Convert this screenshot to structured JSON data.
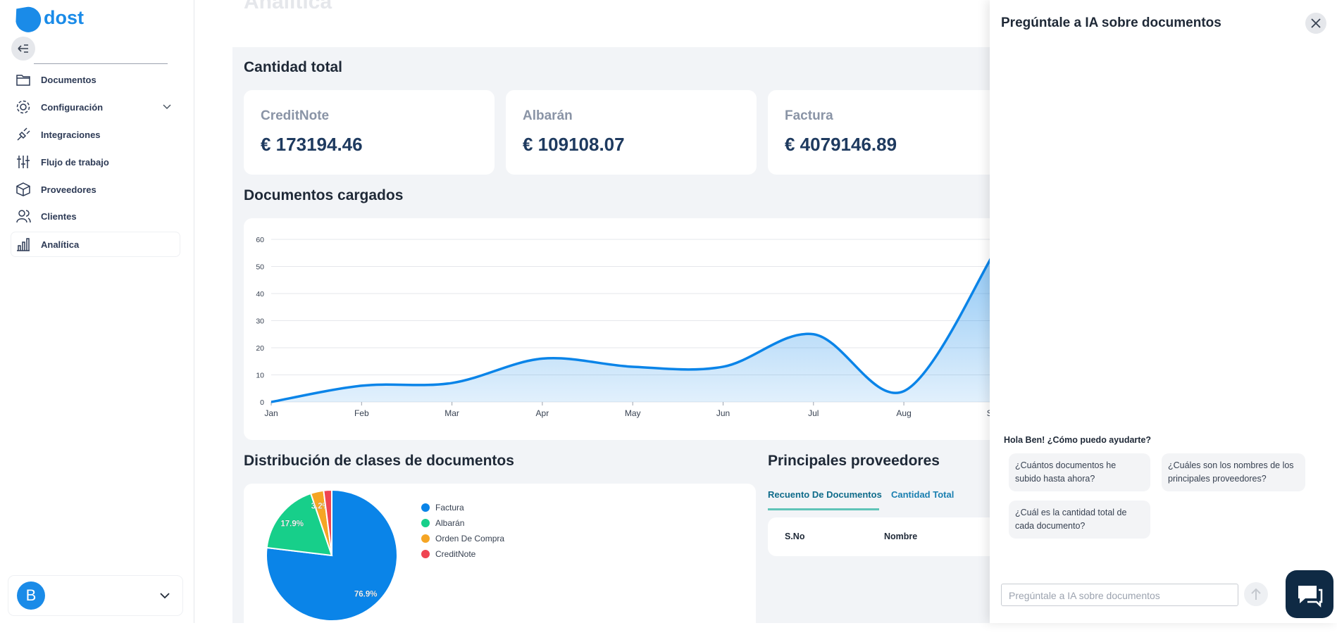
{
  "sidebar": {
    "logo": "dost",
    "nav": [
      "Documentos",
      "Configuración",
      "Integraciones",
      "Flujo de trabajo",
      "Proveedores",
      "Clientes",
      "Analítica"
    ],
    "user_initial": "B"
  },
  "page": {
    "title": "Analítica",
    "totals_heading": "Cantidad total",
    "cards": [
      {
        "label": "CreditNote",
        "amount": "€ 173194.46"
      },
      {
        "label": "Albarán",
        "amount": "€ 109108.07"
      },
      {
        "label": "Factura",
        "amount": "€ 4079146.89"
      }
    ],
    "uploads_heading": "Documentos cargados",
    "distribution_heading": "Distribución de clases de documentos",
    "suppliers": {
      "heading": "Principales proveedores",
      "tabs": [
        "Recuento De Documentos",
        "Cantidad Total"
      ],
      "columns": [
        "S.No",
        "Nombre"
      ]
    }
  },
  "chart_data": [
    {
      "type": "line",
      "categories": [
        "Jan",
        "Feb",
        "Mar",
        "Apr",
        "May",
        "Jun",
        "Jul",
        "Aug",
        "Sep"
      ],
      "values": [
        0,
        6,
        7,
        16,
        13,
        13,
        25,
        4,
        55
      ],
      "color": "#0a84e8",
      "ylim": [
        0,
        60
      ],
      "yticks": [
        0,
        10,
        20,
        30,
        40,
        50,
        60
      ],
      "grid": true
    },
    {
      "type": "pie",
      "categories": [
        "Factura",
        "Albarán",
        "Orden De Compra",
        "CreditNote"
      ],
      "values": [
        76.9,
        17.9,
        3.2,
        2.0
      ],
      "value_labels": [
        "76.9%",
        "17.9%",
        "3.2%",
        null
      ],
      "colors": [
        "#0a84e8",
        "#17cf8a",
        "#f5a524",
        "#ef4452"
      ],
      "legend": "right"
    }
  ],
  "chat": {
    "title": "Pregúntale a IA sobre documentos",
    "greeting": "Hola Ben! ¿Cómo puedo ayudarte?",
    "suggestions": [
      "¿Cuántos documentos he subido hasta ahora?",
      "¿Cuáles son los nombres de los principales proveedores?",
      "¿Cuál es la cantidad total de cada documento?"
    ],
    "input_placeholder": "Pregúntale a IA sobre documentos"
  }
}
